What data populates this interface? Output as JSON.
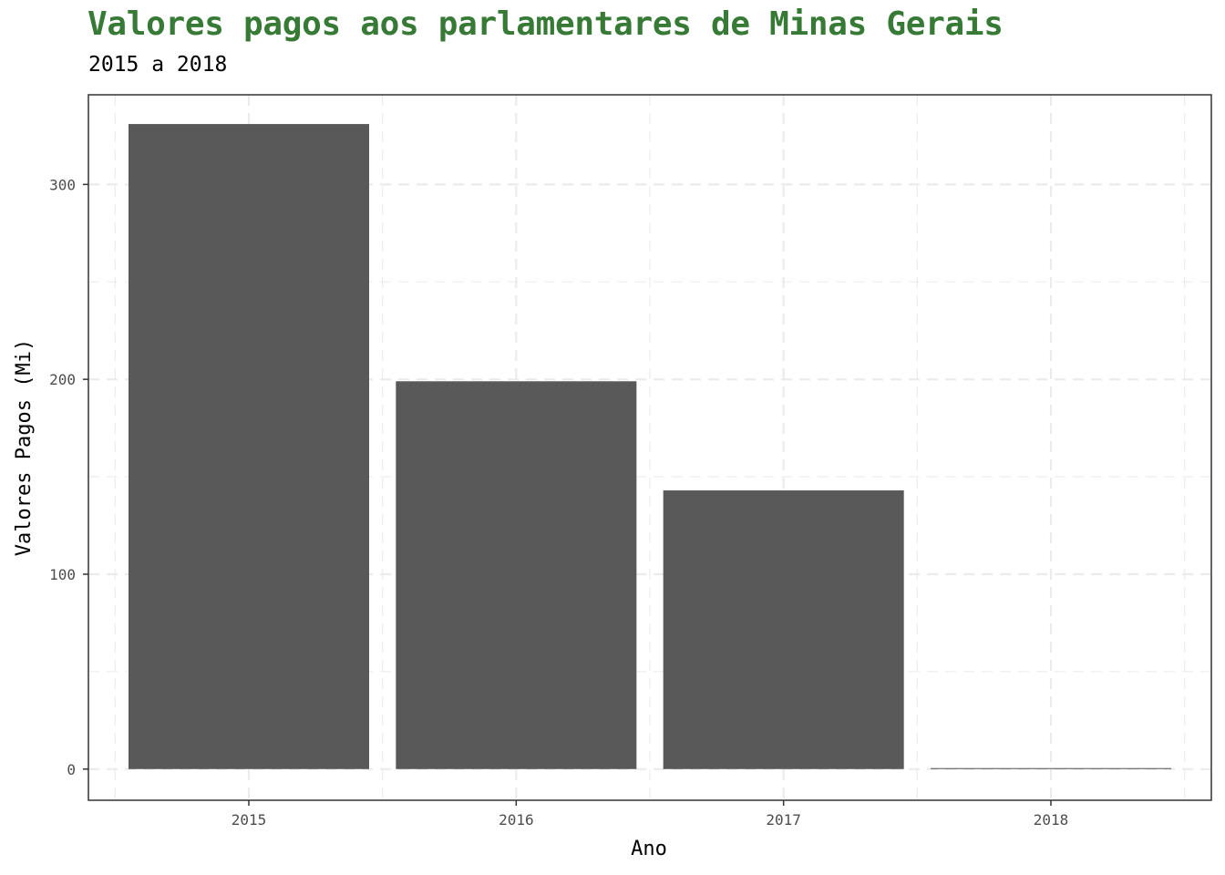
{
  "chart_data": {
    "type": "bar",
    "title": "Valores pagos aos parlamentares de Minas Gerais",
    "subtitle": "2015 a 2018",
    "xlabel": "Ano",
    "ylabel": "Valores Pagos (Mi)",
    "categories": [
      "2015",
      "2016",
      "2017",
      "2018"
    ],
    "values": [
      331,
      199,
      143,
      0.5
    ],
    "ylim": [
      -16,
      346
    ],
    "yticks": [
      0,
      100,
      200,
      300
    ],
    "grid": true,
    "bar_color": "#595959",
    "title_color": "#367a35"
  }
}
